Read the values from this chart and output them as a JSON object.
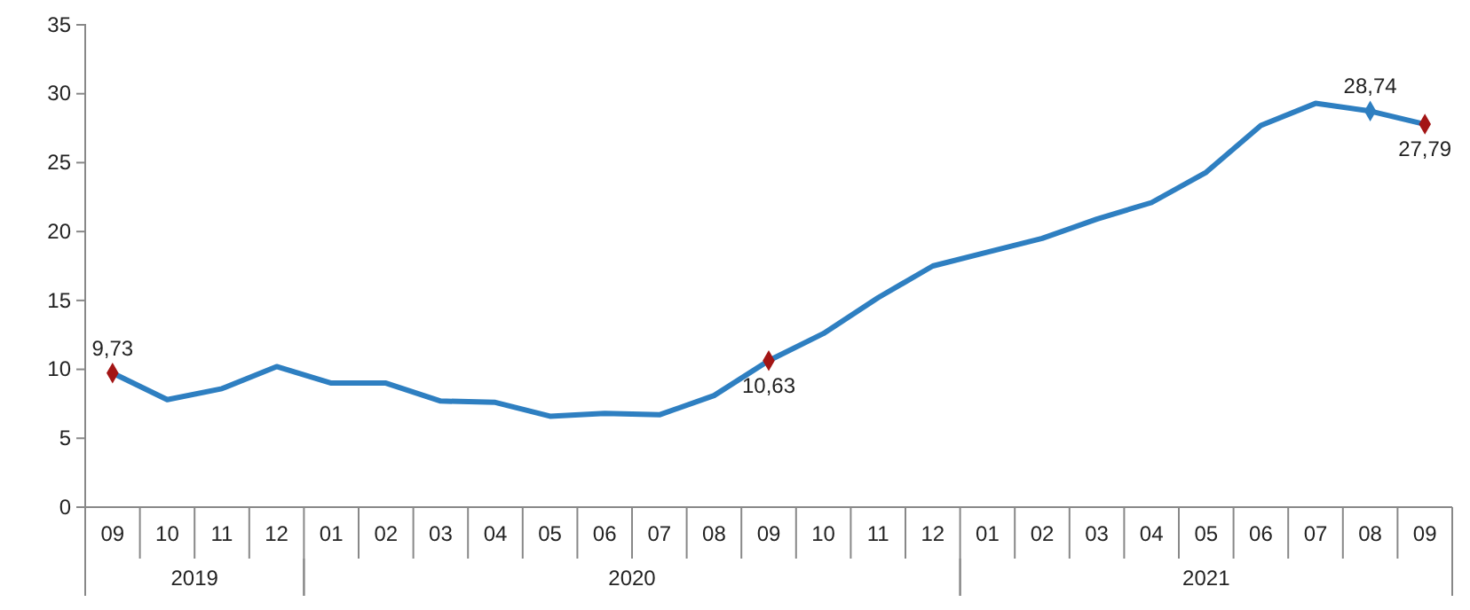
{
  "chart_data": {
    "type": "line",
    "categories": [
      "09",
      "10",
      "11",
      "12",
      "01",
      "02",
      "03",
      "04",
      "05",
      "06",
      "07",
      "08",
      "09",
      "10",
      "11",
      "12",
      "01",
      "02",
      "03",
      "04",
      "05",
      "06",
      "07",
      "08",
      "09"
    ],
    "series": [
      {
        "color": "#2e7fc1",
        "values": [
          9.73,
          7.8,
          8.6,
          10.2,
          9.0,
          9.0,
          7.7,
          7.6,
          6.6,
          6.8,
          6.7,
          8.1,
          10.63,
          12.6,
          15.2,
          17.5,
          18.5,
          19.5,
          20.9,
          22.1,
          24.3,
          27.7,
          29.3,
          28.74,
          27.79
        ],
        "value_labels": [
          "9,73",
          null,
          null,
          null,
          null,
          null,
          null,
          null,
          null,
          null,
          null,
          null,
          "10,63",
          null,
          null,
          null,
          null,
          null,
          null,
          null,
          null,
          null,
          null,
          "28,74",
          "27,79"
        ],
        "colors": [
          "#a31515",
          null,
          null,
          null,
          null,
          null,
          null,
          null,
          null,
          null,
          null,
          null,
          "#a31515",
          null,
          null,
          null,
          null,
          null,
          null,
          null,
          null,
          null,
          null,
          "#2e7fc1",
          "#a31515"
        ]
      }
    ],
    "annotations": [
      "2019",
      "2020",
      "2021"
    ],
    "ylim": [
      0,
      35
    ],
    "yticks": [
      0,
      5,
      10,
      15,
      20,
      25,
      30,
      35
    ],
    "grid": false,
    "line_style": "solid"
  }
}
